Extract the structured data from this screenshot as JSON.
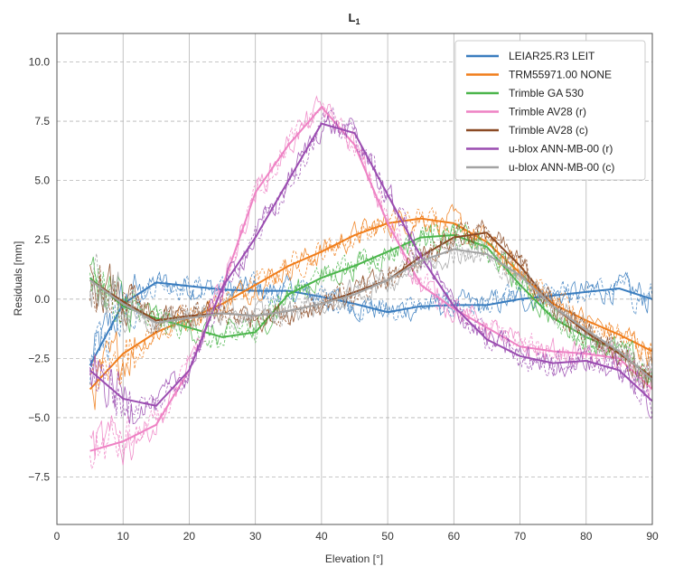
{
  "chart_data": {
    "type": "line",
    "title": "L",
    "title_subscript": "1",
    "xlabel": "Elevation [°]",
    "ylabel": "Residuals [mm]",
    "xlim": [
      0,
      90
    ],
    "ylim": [
      -9.5,
      11.2
    ],
    "xticks": [
      0,
      10,
      20,
      30,
      40,
      50,
      60,
      70,
      80,
      90
    ],
    "yticks": [
      -7.5,
      -5.0,
      -2.5,
      0.0,
      2.5,
      5.0,
      7.5,
      10.0
    ],
    "ytick_labels": [
      "−7.5",
      "−5.0",
      "−2.5",
      "0.0",
      "2.5",
      "5.0",
      "7.5",
      "10.0"
    ],
    "grid": true,
    "legend_position": "top-right",
    "series": [
      {
        "name": "LEIAR25.R3 LEIT",
        "color": "#3a7dbf",
        "x": [
          5,
          10,
          15,
          20,
          25,
          30,
          35,
          40,
          45,
          50,
          55,
          60,
          65,
          70,
          75,
          80,
          85,
          90
        ],
        "y": [
          -2.8,
          -0.2,
          0.7,
          0.55,
          0.4,
          0.35,
          0.35,
          0.1,
          -0.2,
          -0.55,
          -0.3,
          -0.25,
          -0.25,
          0.0,
          0.15,
          0.3,
          0.45,
          0.0
        ]
      },
      {
        "name": "TRM55971.00 NONE",
        "color": "#f07d1a",
        "x": [
          5,
          10,
          15,
          20,
          25,
          30,
          35,
          40,
          45,
          50,
          55,
          60,
          65,
          70,
          75,
          80,
          85,
          90
        ],
        "y": [
          -3.8,
          -2.3,
          -1.4,
          -0.8,
          -0.2,
          0.6,
          1.4,
          2.0,
          2.7,
          3.2,
          3.4,
          3.2,
          2.4,
          1.1,
          -0.2,
          -0.9,
          -1.5,
          -2.2
        ]
      },
      {
        "name": "Trimble GA 530",
        "color": "#4bb54b",
        "x": [
          5,
          10,
          15,
          20,
          25,
          30,
          35,
          40,
          45,
          50,
          55,
          60,
          65,
          70,
          75,
          80,
          85,
          90
        ],
        "y": [
          0.9,
          -0.3,
          -0.8,
          -1.2,
          -1.6,
          -1.4,
          0.2,
          0.9,
          1.4,
          2.0,
          2.6,
          2.7,
          2.2,
          0.6,
          -0.8,
          -1.6,
          -2.2,
          -3.4
        ]
      },
      {
        "name": "Trimble AV28 (r)",
        "color": "#ee82c4",
        "x": [
          5,
          10,
          15,
          20,
          25,
          30,
          35,
          40,
          45,
          50,
          55,
          60,
          65,
          70,
          75,
          80,
          85,
          90
        ],
        "y": [
          -6.4,
          -6.0,
          -5.3,
          -3.0,
          0.5,
          4.5,
          6.5,
          8.1,
          6.5,
          3.2,
          0.6,
          -0.4,
          -1.2,
          -2.0,
          -2.2,
          -2.3,
          -2.5,
          -3.8
        ]
      },
      {
        "name": "Trimble AV28 (c)",
        "color": "#8b4a24",
        "x": [
          5,
          10,
          15,
          20,
          25,
          30,
          35,
          40,
          45,
          50,
          55,
          60,
          65,
          70,
          75,
          80,
          85,
          90
        ],
        "y": [
          0.8,
          -0.1,
          -0.9,
          -0.7,
          -0.6,
          -0.7,
          -0.5,
          -0.2,
          0.3,
          0.8,
          1.8,
          2.6,
          2.8,
          1.4,
          -0.3,
          -1.4,
          -2.3,
          -3.3
        ]
      },
      {
        "name": "u-blox ANN-MB-00 (r)",
        "color": "#9a4cb0",
        "x": [
          5,
          10,
          15,
          20,
          25,
          30,
          35,
          40,
          45,
          50,
          55,
          60,
          65,
          70,
          75,
          80,
          85,
          90
        ],
        "y": [
          -3.0,
          -4.2,
          -4.5,
          -3.0,
          0.5,
          2.6,
          5.0,
          7.4,
          7.0,
          4.4,
          1.8,
          -0.3,
          -1.7,
          -2.4,
          -2.7,
          -2.6,
          -3.0,
          -4.3
        ]
      },
      {
        "name": "u-blox ANN-MB-00 (c)",
        "color": "#a3a3a3",
        "x": [
          5,
          10,
          15,
          20,
          25,
          30,
          35,
          40,
          45,
          50,
          55,
          60,
          65,
          70,
          75,
          80,
          85,
          90
        ],
        "y": [
          0.8,
          -0.2,
          -1.0,
          -0.8,
          -0.6,
          -0.7,
          -0.5,
          -0.2,
          0.2,
          0.8,
          1.6,
          2.1,
          1.9,
          1.0,
          -0.3,
          -1.3,
          -2.2,
          -3.4
        ]
      }
    ]
  }
}
